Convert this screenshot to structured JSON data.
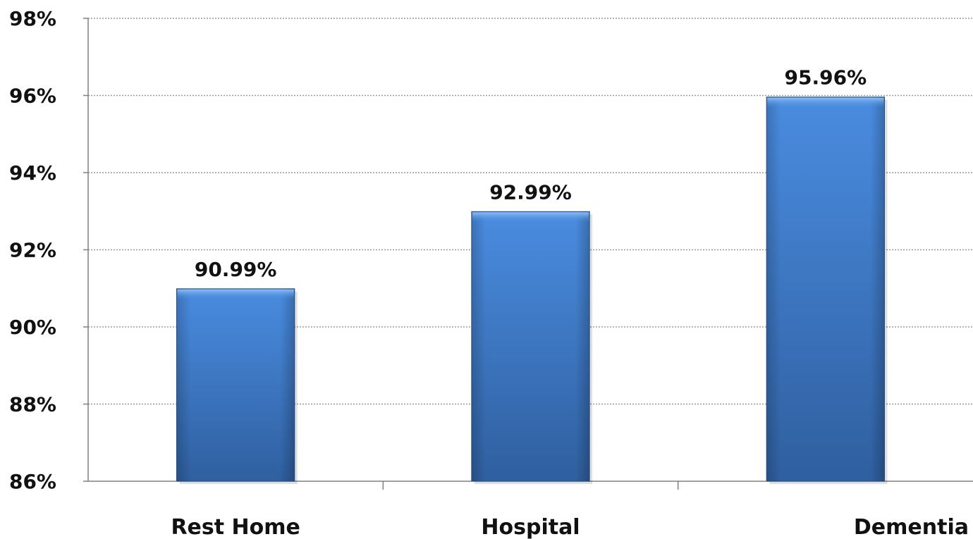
{
  "chart_data": {
    "type": "bar",
    "title": "",
    "xlabel": "",
    "ylabel": "",
    "categories": [
      "Rest Home",
      "Hospital",
      "Dementia"
    ],
    "values": [
      90.99,
      92.99,
      95.96
    ],
    "data_labels": [
      "90.99%",
      "92.99%",
      "95.96%"
    ],
    "ylim": [
      86,
      98
    ],
    "yticks": [
      86,
      88,
      90,
      92,
      94,
      96,
      98
    ],
    "ytick_labels": [
      "86%",
      "88%",
      "90%",
      "92%",
      "94%",
      "96%",
      "98%"
    ],
    "grid": true,
    "legend": "none",
    "bar_color": "#3a74c4"
  }
}
